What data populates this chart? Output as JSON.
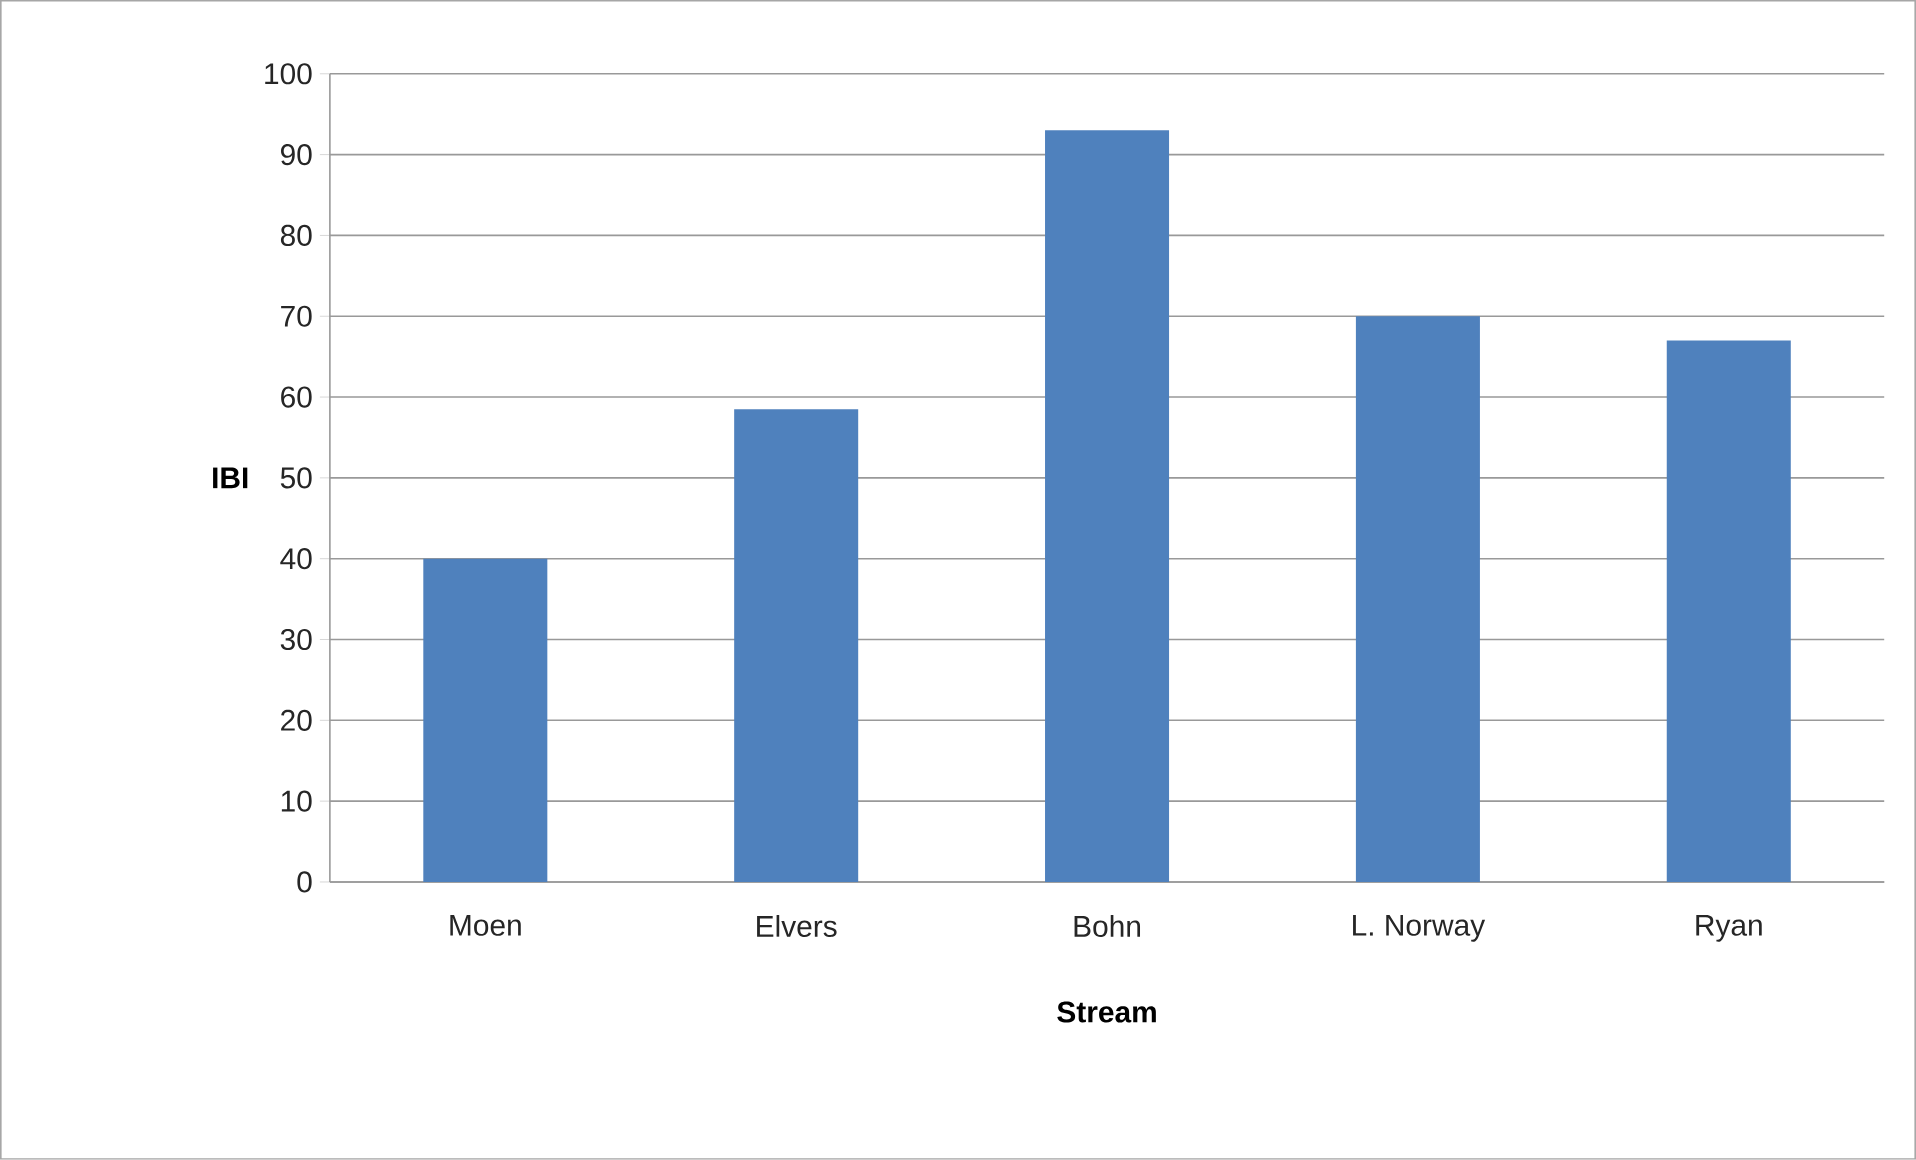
{
  "chart_data": {
    "type": "bar",
    "xlabel": "Stream",
    "ylabel": "IBI",
    "categories": [
      "Moen",
      "Elvers",
      "Bohn",
      "L. Norway",
      "Ryan"
    ],
    "values": [
      40,
      58.5,
      93,
      70,
      67
    ],
    "color": "#4f81bd",
    "ylim": [
      0,
      100
    ],
    "yticks": [
      0,
      10,
      20,
      30,
      40,
      50,
      60,
      70,
      80,
      90,
      100
    ],
    "grid": "y"
  }
}
